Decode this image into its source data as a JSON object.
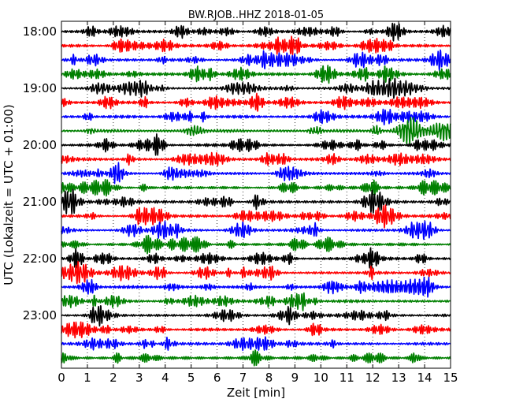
{
  "chart_data": {
    "type": "line",
    "plot_kind": "dayplot",
    "title": "BW.RJOB..HHZ 2018-01-05",
    "xlabel": "Zeit  [min]",
    "ylabel": "UTC (Lokalzeit = UTC + 01:00)",
    "xlim": [
      0,
      15
    ],
    "x_ticks": [
      "0",
      "1",
      "2",
      "3",
      "4",
      "5",
      "6",
      "7",
      "8",
      "9",
      "10",
      "11",
      "12",
      "13",
      "14",
      "15"
    ],
    "y_ticks": [
      "18:00",
      "19:00",
      "20:00",
      "21:00",
      "22:00",
      "23:00"
    ],
    "row_count": 24,
    "row_start": "18:00",
    "row_interval_min": 15,
    "color_cycle": [
      "#000000",
      "#ff0000",
      "#0000ff",
      "#008000"
    ],
    "grid": "vertical dotted at each minute",
    "legend": "none"
  }
}
